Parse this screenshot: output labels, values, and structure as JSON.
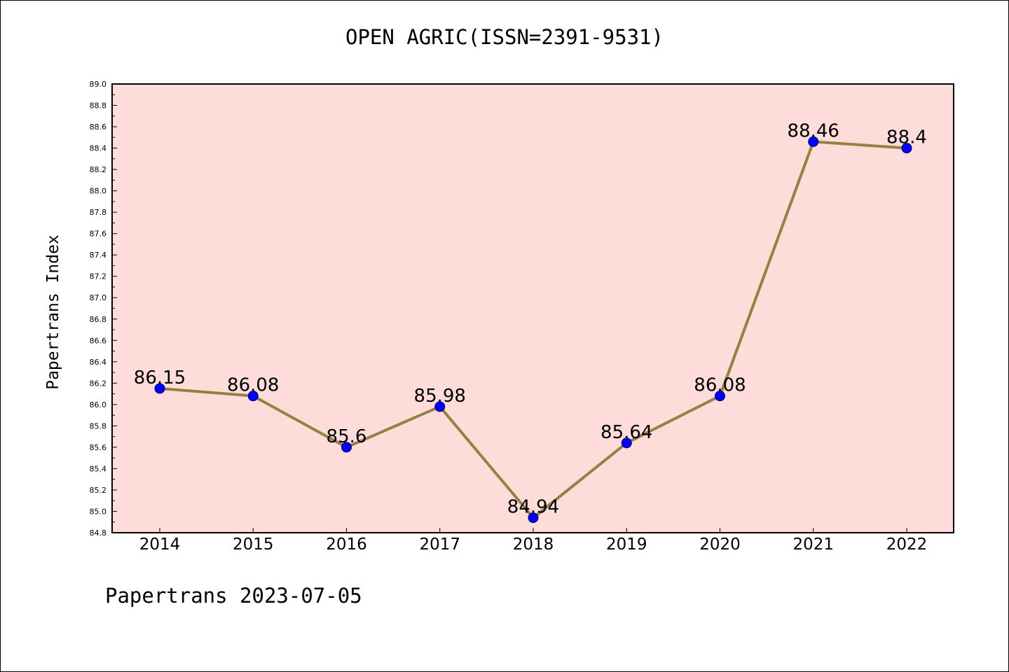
{
  "chart_data": {
    "type": "line",
    "title": "OPEN AGRIC(ISSN=2391-9531)",
    "xlabel": "",
    "ylabel": "Papertrans Index",
    "categories": [
      "2014",
      "2015",
      "2016",
      "2017",
      "2018",
      "2019",
      "2020",
      "2021",
      "2022"
    ],
    "series": [
      {
        "values": [
          86.15,
          86.08,
          85.6,
          85.98,
          84.94,
          85.64,
          86.08,
          88.46,
          88.4
        ],
        "data_labels": [
          "86.15",
          "86.08",
          "85.6",
          "85.98",
          "84.94",
          "85.64",
          "86.08",
          "88.46",
          "88.4"
        ]
      }
    ],
    "ylim": [
      84.8,
      89.0
    ],
    "yticks": [
      "84.8",
      "85.0",
      "85.2",
      "85.4",
      "85.6",
      "85.8",
      "86.0",
      "86.2",
      "86.4",
      "86.6",
      "86.8",
      "87.0",
      "87.2",
      "87.4",
      "87.6",
      "87.8",
      "88.0",
      "88.2",
      "88.4",
      "88.6",
      "88.8",
      "89.0"
    ],
    "grid": false,
    "legend": "none",
    "colors": {
      "plot_background": "#fddcda",
      "line": "#948240",
      "marker": "#0000ff"
    }
  },
  "footer": "Papertrans 2023-07-05"
}
